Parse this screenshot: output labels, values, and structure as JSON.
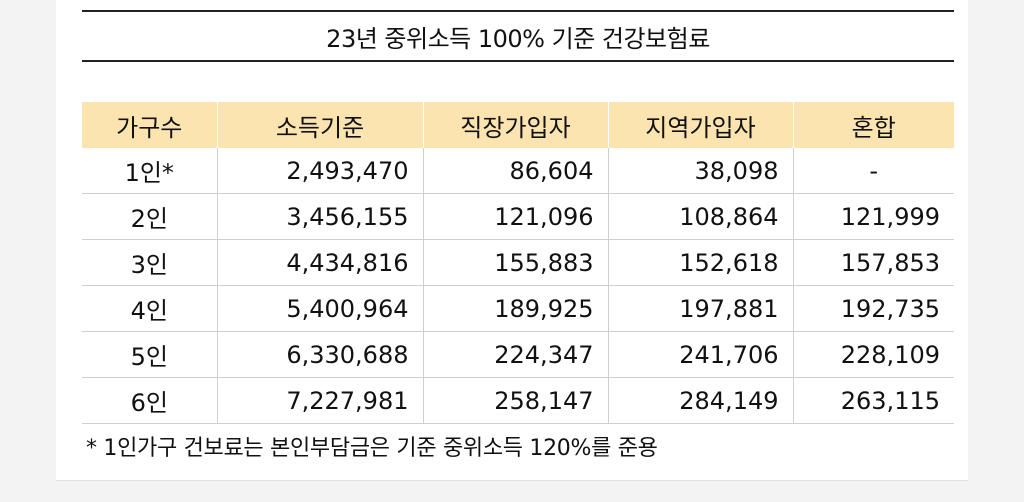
{
  "title": "23년 중위소득 100% 기준 건강보험료",
  "table": {
    "headers": [
      "가구수",
      "소득기준",
      "직장가입자",
      "지역가입자",
      "혼합"
    ],
    "rows": [
      [
        "1인*",
        "2,493,470",
        "86,604",
        "38,098",
        "-"
      ],
      [
        "2인",
        "3,456,155",
        "121,096",
        "108,864",
        "121,999"
      ],
      [
        "3인",
        "4,434,816",
        "155,883",
        "152,618",
        "157,853"
      ],
      [
        "4인",
        "5,400,964",
        "189,925",
        "197,881",
        "192,735"
      ],
      [
        "5인",
        "6,330,688",
        "224,347",
        "241,706",
        "228,109"
      ],
      [
        "6인",
        "7,227,981",
        "258,147",
        "284,149",
        "263,115"
      ]
    ]
  },
  "footnote": "* 1인가구 건보료는 본인부담금은 기준 중위소득 120%를 준용",
  "colors": {
    "header_bg": "#fbe4b0",
    "rule": "#222222"
  }
}
